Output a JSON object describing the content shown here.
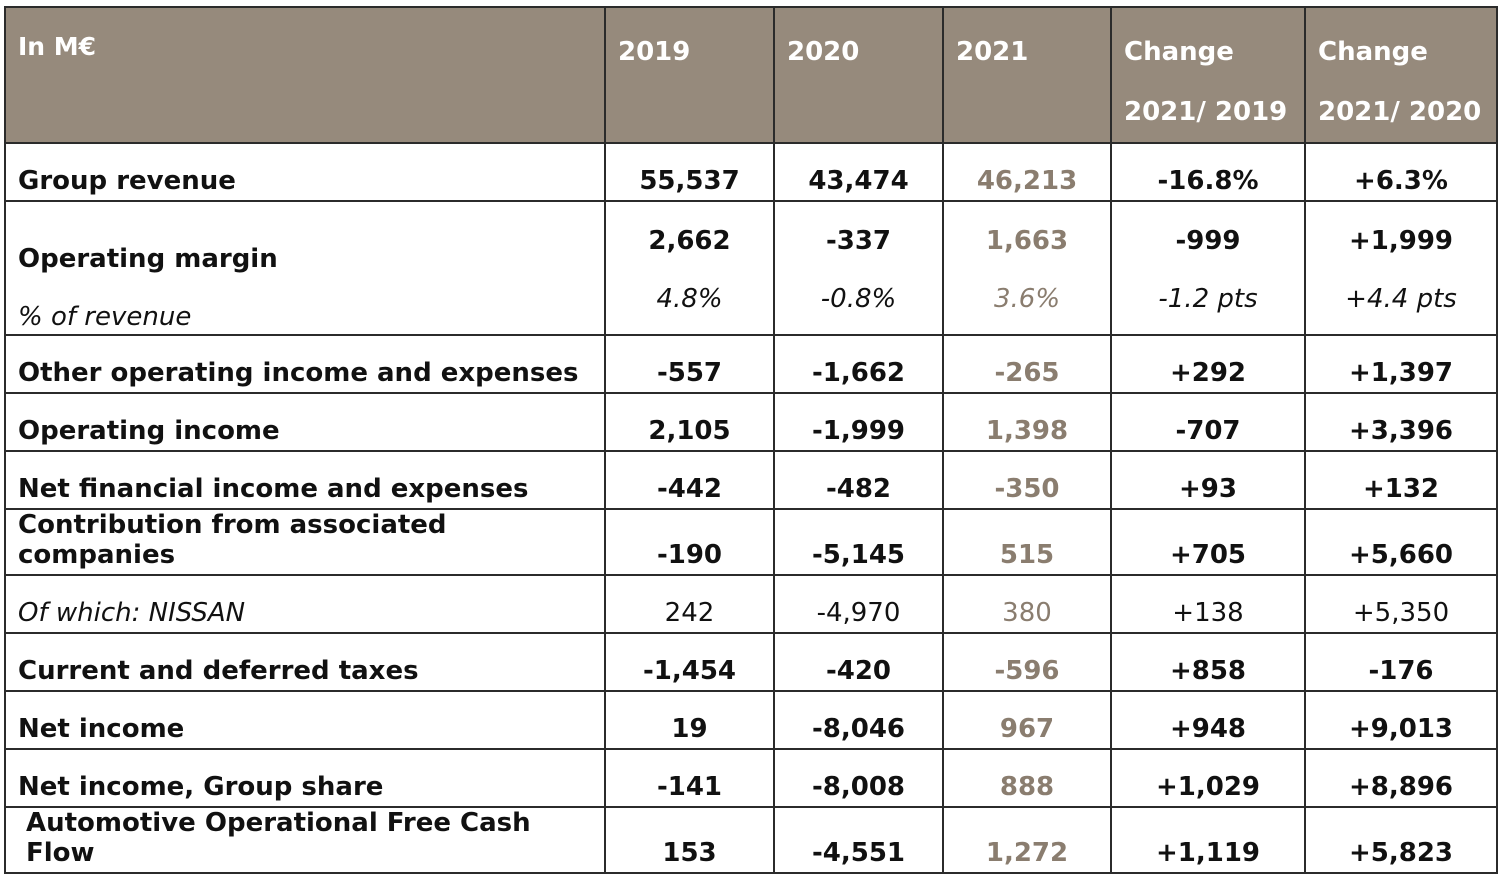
{
  "header": {
    "label": "In M€",
    "y2019": "2019",
    "y2020": "2020",
    "y2021": "2021",
    "chg1_line1": "Change",
    "chg1_line2": "2021/ 2019",
    "chg2_line1": "Change",
    "chg2_line2": "2021/ 2020"
  },
  "colors": {
    "header_bg": "#968a7c",
    "header_text": "#ffffff",
    "year2021_text": "#8a7d6f",
    "border": "#2b2b2b"
  },
  "rows": {
    "group_revenue": {
      "label": "Group revenue",
      "y2019": "55,537",
      "y2020": "43,474",
      "y2021": "46,213",
      "chg1": "-16.8%",
      "chg2": "+6.3%"
    },
    "operating_margin": {
      "label": "Operating margin",
      "y2019": "2,662",
      "y2020": "-337",
      "y2021": "1,663",
      "chg1": "-999",
      "chg2": "+1,999",
      "pct_label": "% of revenue",
      "pct_2019": "4.8%",
      "pct_2020": "-0.8%",
      "pct_2021": "3.6%",
      "pct_chg1": "-1.2 pts",
      "pct_chg2": "+4.4 pts"
    },
    "other_operating": {
      "label": "Other operating income and expenses",
      "y2019": "-557",
      "y2020": "-1,662",
      "y2021": "-265",
      "chg1": "+292",
      "chg2": "+1,397"
    },
    "operating_income": {
      "label": "Operating income",
      "y2019": "2,105",
      "y2020": "-1,999",
      "y2021": "1,398",
      "chg1": "-707",
      "chg2": "+3,396"
    },
    "net_financial": {
      "label": "Net financial income and expenses",
      "y2019": "-442",
      "y2020": "-482",
      "y2021": "-350",
      "chg1": "+93",
      "chg2": "+132"
    },
    "associated": {
      "label": "Contribution from associated companies",
      "y2019": "-190",
      "y2020": "-5,145",
      "y2021": "515",
      "chg1": "+705",
      "chg2": "+5,660"
    },
    "nissan": {
      "label": "Of which: NISSAN",
      "y2019": "242",
      "y2020": "-4,970",
      "y2021": "380",
      "chg1": "+138",
      "chg2": "+5,350"
    },
    "taxes": {
      "label": "Current and deferred taxes",
      "y2019": "-1,454",
      "y2020": "-420",
      "y2021": "-596",
      "chg1": "+858",
      "chg2": "-176"
    },
    "net_income": {
      "label": "Net income",
      "y2019": "19",
      "y2020": "-8,046",
      "y2021": "967",
      "chg1": "+948",
      "chg2": "+9,013"
    },
    "net_income_group": {
      "label": "Net income, Group share",
      "y2019": "-141",
      "y2020": "-8,008",
      "y2021": "888",
      "chg1": "+1,029",
      "chg2": "+8,896"
    },
    "free_cash_flow": {
      "label": "Automotive Operational Free Cash Flow",
      "y2019": "153",
      "y2020": "-4,551",
      "y2021": "1,272",
      "chg1": "+1,119",
      "chg2": "+5,823"
    }
  }
}
